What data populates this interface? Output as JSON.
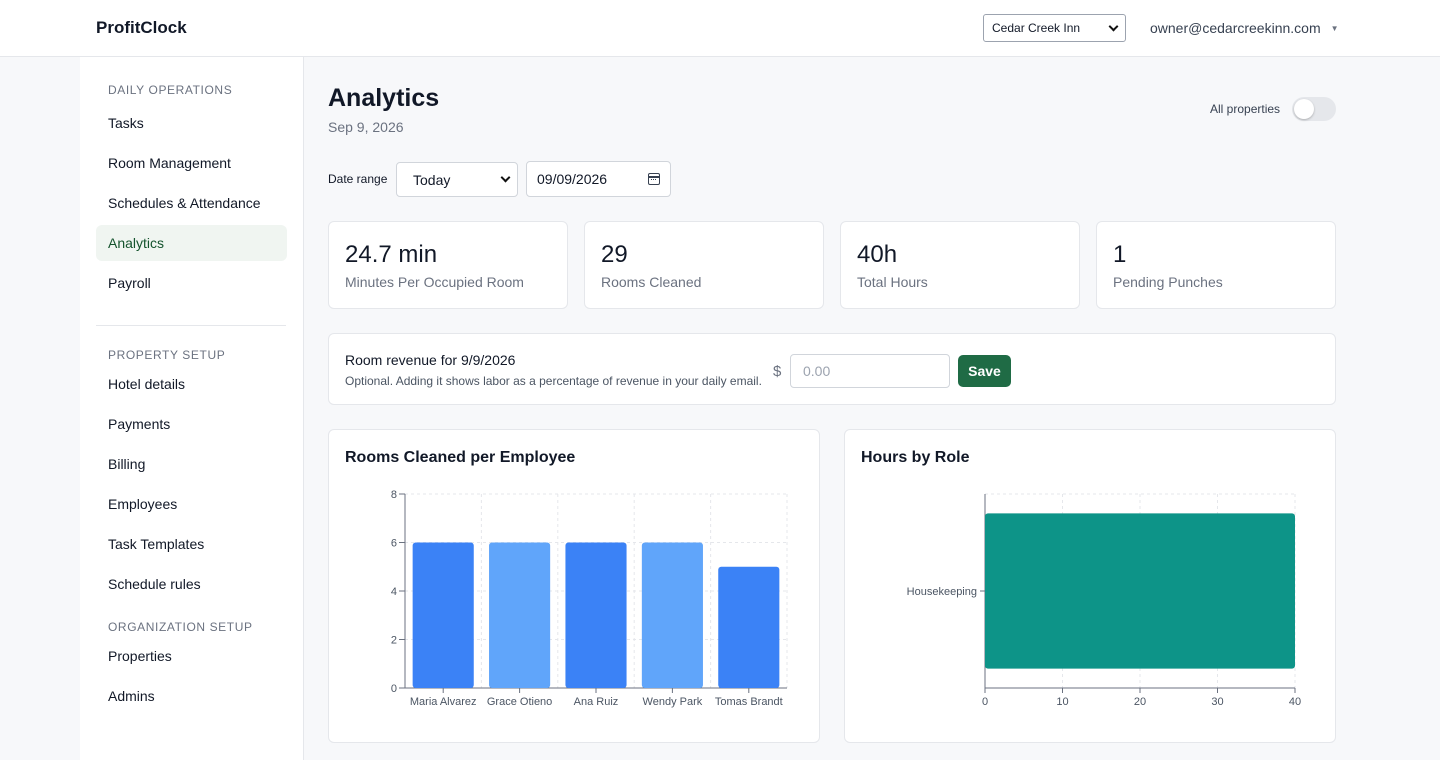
{
  "app": {
    "name": "ProfitClock"
  },
  "header": {
    "property_selected": "Cedar Creek Inn",
    "user_email": "owner@cedarcreekinn.com"
  },
  "sidebar": {
    "sections": [
      {
        "label": "DAILY OPERATIONS",
        "items": [
          "Tasks",
          "Room Management",
          "Schedules & Attendance",
          "Analytics",
          "Payroll"
        ]
      },
      {
        "label": "PROPERTY SETUP",
        "items": [
          "Hotel details",
          "Payments",
          "Billing",
          "Employees",
          "Task Templates",
          "Schedule rules"
        ]
      },
      {
        "label": "ORGANIZATION SETUP",
        "items": [
          "Properties",
          "Admins"
        ]
      }
    ],
    "active_item": "Analytics"
  },
  "page": {
    "title": "Analytics",
    "date": "Sep 9, 2026",
    "all_properties_label": "All properties",
    "all_properties_on": false
  },
  "filters": {
    "date_range_label": "Date range",
    "date_range_value": "Today",
    "date_value": "09/09/2026"
  },
  "stats": [
    {
      "value": "24.7 min",
      "label": "Minutes Per Occupied Room"
    },
    {
      "value": "29",
      "label": "Rooms Cleaned"
    },
    {
      "value": "40h",
      "label": "Total Hours"
    },
    {
      "value": "1",
      "label": "Pending Punches"
    }
  ],
  "revenue": {
    "title": "Room revenue for 9/9/2026",
    "help": "Optional. Adding it shows labor as a percentage of revenue in your daily email.",
    "currency": "$",
    "placeholder": "0.00",
    "save_label": "Save"
  },
  "colors": {
    "accent_green": "#1f6b45",
    "bar_blue_dark": "#3b82f6",
    "bar_blue_light": "#60a5fa",
    "bar_teal": "#0d9488"
  },
  "chart_data": [
    {
      "type": "bar",
      "title": "Rooms Cleaned per Employee",
      "categories": [
        "Maria Alvarez",
        "Grace Otieno",
        "Ana Ruiz",
        "Wendy Park",
        "Tomas Brandt"
      ],
      "values": [
        6,
        6,
        6,
        6,
        5
      ],
      "ylim": [
        0,
        8
      ],
      "yticks": [
        0,
        2,
        4,
        6,
        8
      ],
      "grid": true,
      "xlabel": "",
      "ylabel": ""
    },
    {
      "type": "bar",
      "orientation": "horizontal",
      "title": "Hours by Role",
      "categories": [
        "Housekeeping"
      ],
      "values": [
        40
      ],
      "xlim": [
        0,
        40
      ],
      "xticks": [
        0,
        10,
        20,
        30,
        40
      ],
      "grid": true,
      "xlabel": "",
      "ylabel": ""
    }
  ]
}
